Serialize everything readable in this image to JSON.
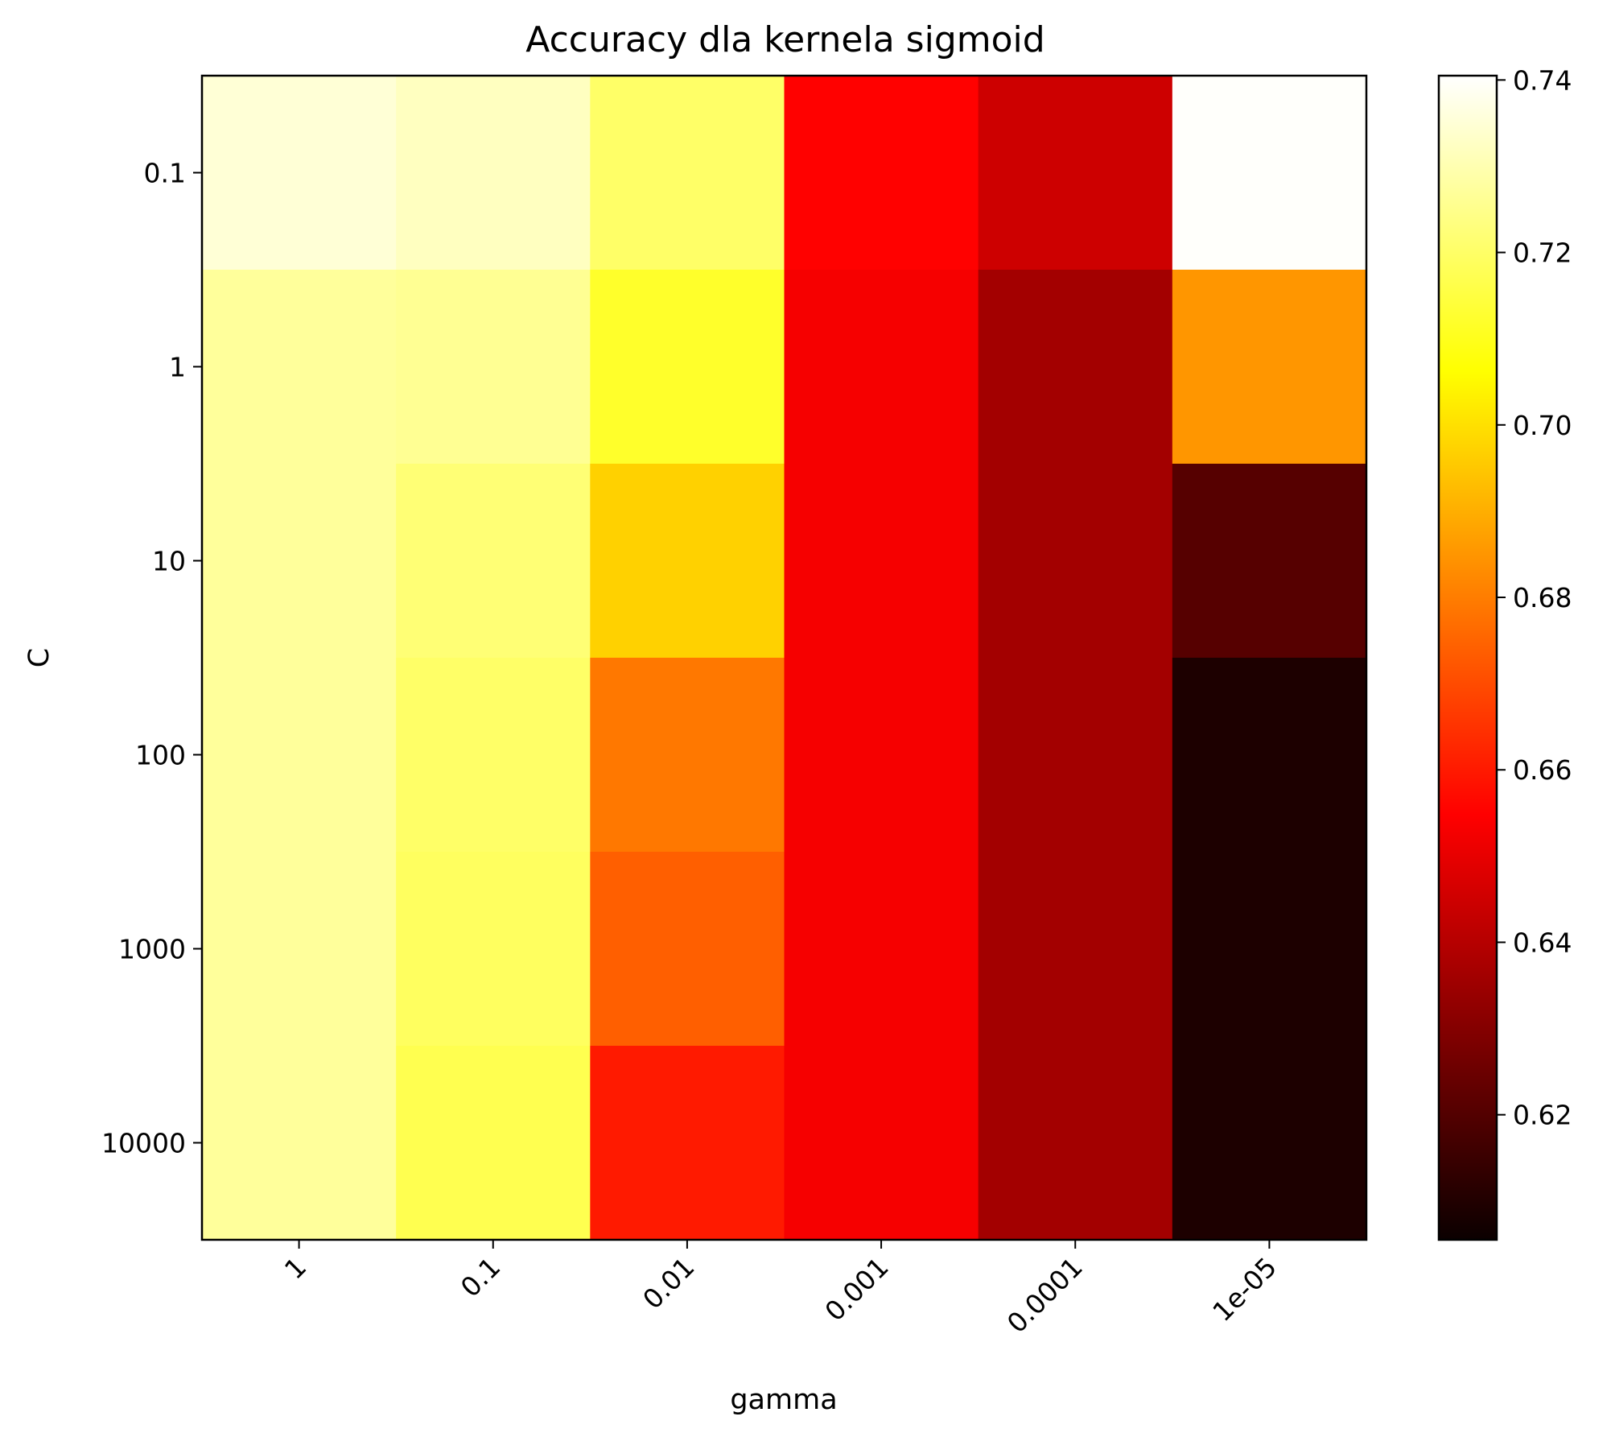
{
  "chart_data": {
    "type": "heatmap",
    "title": "Accuracy dla kernela sigmoid",
    "xlabel": "gamma",
    "ylabel": "C",
    "x_categories": [
      "1",
      "0.1",
      "0.01",
      "0.001",
      "0.0001",
      "1e-05"
    ],
    "y_categories": [
      "0.1",
      "1",
      "10",
      "100",
      "1000",
      "10000"
    ],
    "values": [
      [
        0.735,
        0.732,
        0.72,
        0.655,
        0.643,
        0.74
      ],
      [
        0.727,
        0.726,
        0.712,
        0.651,
        0.635,
        0.685
      ],
      [
        0.727,
        0.722,
        0.697,
        0.651,
        0.635,
        0.62
      ],
      [
        0.727,
        0.72,
        0.679,
        0.651,
        0.635,
        0.609
      ],
      [
        0.727,
        0.719,
        0.674,
        0.651,
        0.635,
        0.609
      ],
      [
        0.727,
        0.717,
        0.66,
        0.651,
        0.635,
        0.609
      ]
    ],
    "colormap": "hot",
    "colorbar": {
      "vmin": 0.6055,
      "vmax": 0.7405,
      "ticks": [
        0.62,
        0.64,
        0.66,
        0.68,
        0.7,
        0.72,
        0.74
      ],
      "tick_labels": [
        "0.62",
        "0.64",
        "0.66",
        "0.68",
        "0.70",
        "0.72",
        "0.74"
      ]
    },
    "grid": false,
    "legend": "none"
  }
}
